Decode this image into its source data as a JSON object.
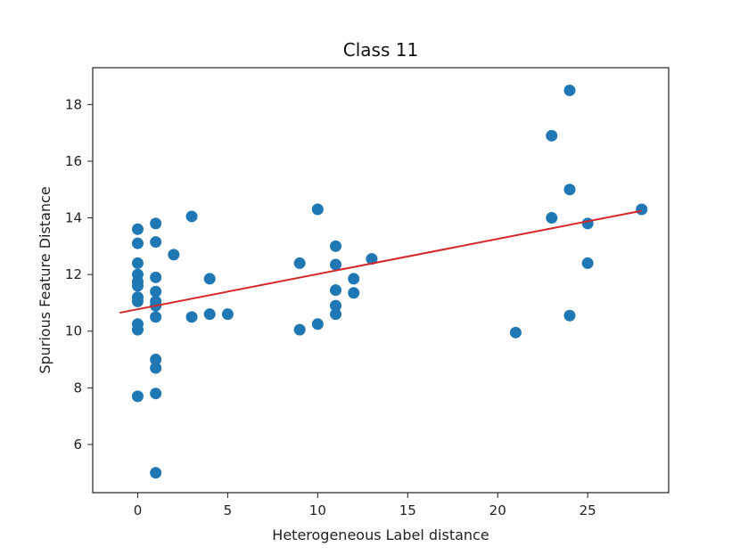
{
  "chart_data": {
    "type": "scatter",
    "title": "Class 11",
    "xlabel": "Heterogeneous Label distance",
    "ylabel": "Spurious Feature Distance",
    "xlim": [
      -2.5,
      29.5
    ],
    "ylim": [
      4.3,
      19.3
    ],
    "xticks": [
      0,
      5,
      10,
      15,
      20,
      25
    ],
    "yticks": [
      6,
      8,
      10,
      12,
      14,
      16,
      18
    ],
    "grid": false,
    "legend": "none",
    "point_color": "#1f77b4",
    "line_color": "#d62728",
    "points": [
      {
        "x": 0,
        "y": 13.6
      },
      {
        "x": 0,
        "y": 13.1
      },
      {
        "x": 0,
        "y": 12.4
      },
      {
        "x": 0,
        "y": 12.0
      },
      {
        "x": 0,
        "y": 11.75
      },
      {
        "x": 0,
        "y": 11.6
      },
      {
        "x": 0,
        "y": 11.2
      },
      {
        "x": 0,
        "y": 11.05
      },
      {
        "x": 0,
        "y": 10.25
      },
      {
        "x": 0,
        "y": 10.05
      },
      {
        "x": 0,
        "y": 7.7
      },
      {
        "x": 1,
        "y": 13.8
      },
      {
        "x": 1,
        "y": 13.15
      },
      {
        "x": 1,
        "y": 11.9
      },
      {
        "x": 1,
        "y": 11.4
      },
      {
        "x": 1,
        "y": 11.05
      },
      {
        "x": 1,
        "y": 10.9
      },
      {
        "x": 1,
        "y": 10.5
      },
      {
        "x": 1,
        "y": 9.0
      },
      {
        "x": 1,
        "y": 8.7
      },
      {
        "x": 1,
        "y": 7.8
      },
      {
        "x": 1,
        "y": 5.0
      },
      {
        "x": 2,
        "y": 12.7
      },
      {
        "x": 3,
        "y": 14.05
      },
      {
        "x": 3,
        "y": 10.5
      },
      {
        "x": 4,
        "y": 11.85
      },
      {
        "x": 4,
        "y": 10.6
      },
      {
        "x": 5,
        "y": 10.6
      },
      {
        "x": 9,
        "y": 12.4
      },
      {
        "x": 9,
        "y": 10.05
      },
      {
        "x": 10,
        "y": 14.3
      },
      {
        "x": 10,
        "y": 10.25
      },
      {
        "x": 11,
        "y": 13.0
      },
      {
        "x": 11,
        "y": 12.35
      },
      {
        "x": 11,
        "y": 11.45
      },
      {
        "x": 11,
        "y": 10.9
      },
      {
        "x": 11,
        "y": 10.6
      },
      {
        "x": 12,
        "y": 11.85
      },
      {
        "x": 12,
        "y": 11.35
      },
      {
        "x": 13,
        "y": 12.55
      },
      {
        "x": 21,
        "y": 9.95
      },
      {
        "x": 23,
        "y": 16.9
      },
      {
        "x": 23,
        "y": 14.0
      },
      {
        "x": 24,
        "y": 18.5
      },
      {
        "x": 24,
        "y": 15.0
      },
      {
        "x": 24,
        "y": 10.55
      },
      {
        "x": 25,
        "y": 13.8
      },
      {
        "x": 25,
        "y": 12.4
      },
      {
        "x": 28,
        "y": 14.3
      }
    ],
    "fit_line": {
      "x": [
        -1,
        28
      ],
      "y": [
        10.65,
        14.25
      ]
    }
  }
}
